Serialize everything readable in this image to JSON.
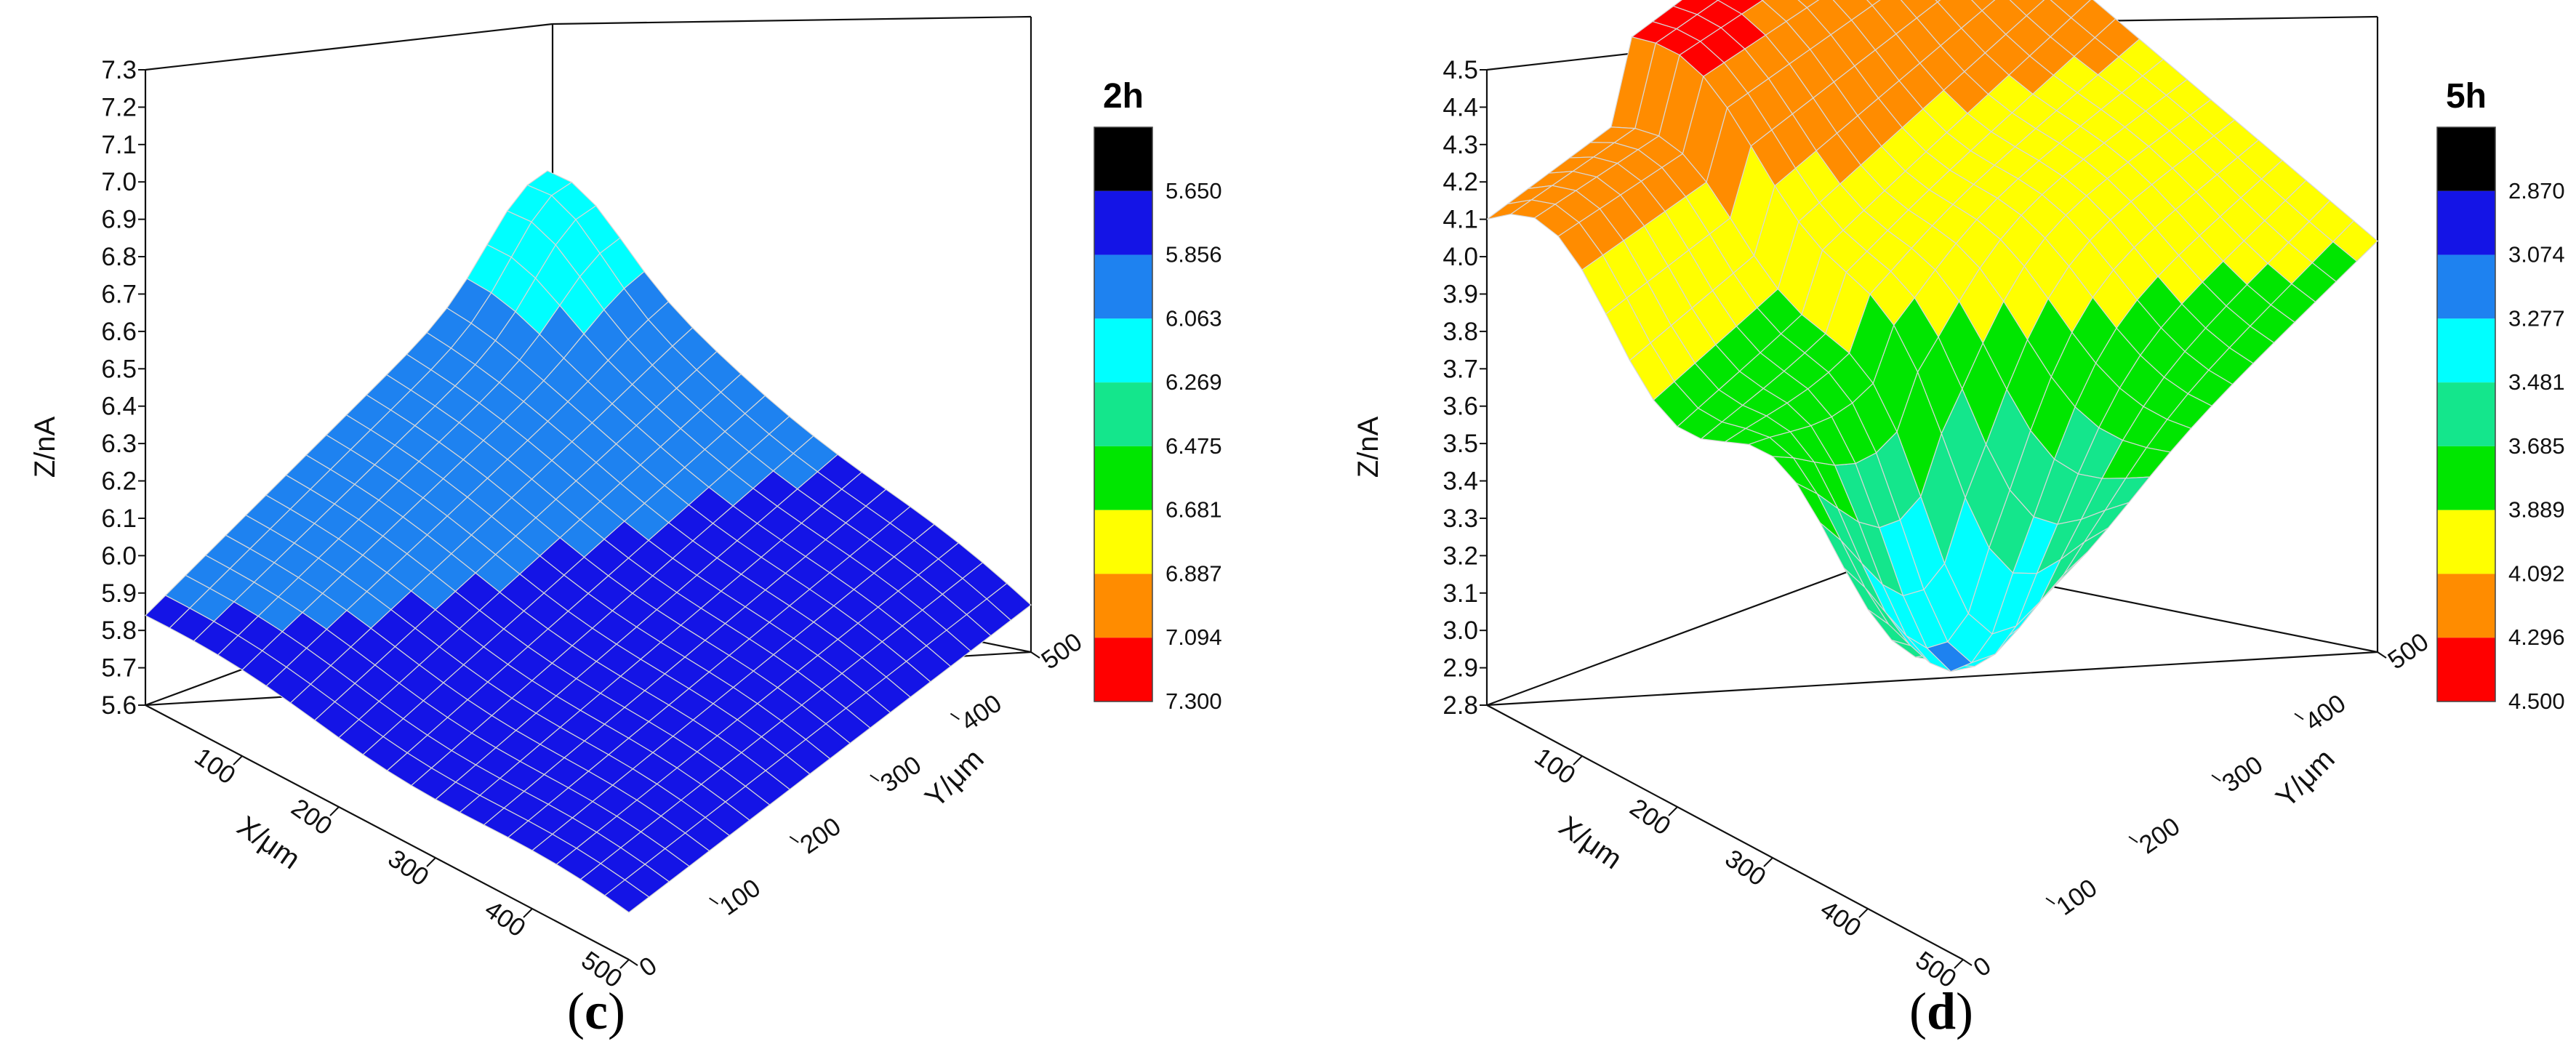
{
  "chart_data": [
    {
      "type": "surface3d",
      "panel_label": {
        "open": "(",
        "letter": "c",
        "close": ")"
      },
      "legend_title": "2h",
      "xlabel": "X/μm",
      "ylabel": "Y/μm",
      "zlabel": "Z/nA",
      "xlim": [
        0,
        500
      ],
      "ylim": [
        0,
        500
      ],
      "zlim": [
        5.6,
        7.3
      ],
      "x_ticks": [
        "100",
        "200",
        "300",
        "400",
        "500"
      ],
      "y_ticks": [
        "0",
        "100",
        "200",
        "300",
        "400",
        "500"
      ],
      "z_ticks": [
        "5.6",
        "5.7",
        "5.8",
        "5.9",
        "6.0",
        "6.1",
        "6.2",
        "6.3",
        "6.4",
        "6.5",
        "6.6",
        "6.7",
        "6.8",
        "6.9",
        "7.0",
        "7.1",
        "7.2",
        "7.3"
      ],
      "colorbar_levels": [
        "5.650",
        "5.856",
        "6.063",
        "6.269",
        "6.475",
        "6.681",
        "6.887",
        "7.094",
        "7.300"
      ],
      "colorbar_colors": [
        "#000000",
        "#1414e6",
        "#1e82f0",
        "#00ffff",
        "#14e68c",
        "#00e600",
        "#ffff00",
        "#ff8c00",
        "#ff0000"
      ],
      "surface_description_values": {
        "corner_x0_y0": 5.7,
        "corner_x500_y0": 5.75,
        "corner_x0_y500": 5.9,
        "corner_x500_y500": 6.2,
        "peak": 6.35
      }
    },
    {
      "type": "surface3d",
      "panel_label": {
        "open": "(",
        "letter": "d",
        "close": ")"
      },
      "legend_title": "5h",
      "xlabel": "X/μm",
      "ylabel": "Y/μm",
      "zlabel": "Z/nA",
      "xlim": [
        0,
        500
      ],
      "ylim": [
        0,
        500
      ],
      "zlim": [
        2.8,
        4.5
      ],
      "x_ticks": [
        "100",
        "200",
        "300",
        "400",
        "500"
      ],
      "y_ticks": [
        "0",
        "100",
        "200",
        "300",
        "400",
        "500"
      ],
      "z_ticks": [
        "2.8",
        "2.9",
        "3.0",
        "3.1",
        "3.2",
        "3.3",
        "3.4",
        "3.5",
        "3.6",
        "3.7",
        "3.8",
        "3.9",
        "4.0",
        "4.1",
        "4.2",
        "4.3",
        "4.4",
        "4.5"
      ],
      "colorbar_levels": [
        "2.870",
        "3.074",
        "3.277",
        "3.481",
        "3.685",
        "3.889",
        "4.092",
        "4.296",
        "4.500"
      ],
      "colorbar_colors": [
        "#000000",
        "#1414e6",
        "#1e82f0",
        "#00ffff",
        "#14e68c",
        "#00e600",
        "#ffff00",
        "#ff8c00",
        "#ff0000"
      ],
      "surface_description_values": {
        "max": 4.35,
        "min": 3.3
      }
    }
  ]
}
